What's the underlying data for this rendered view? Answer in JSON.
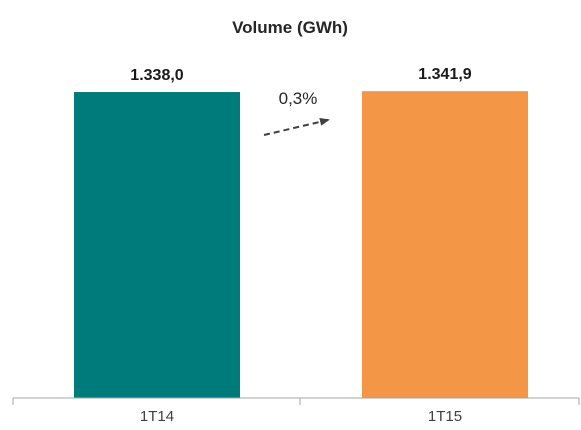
{
  "chart_data": {
    "type": "bar",
    "title": "Volume (GWh)",
    "categories": [
      "1T14",
      "1T15"
    ],
    "values": [
      1338.0,
      1341.9
    ],
    "value_labels": [
      "1.338,0",
      "1.341,9"
    ],
    "colors": [
      "#007b7b",
      "#f39646"
    ],
    "ylim": [
      0,
      1500
    ],
    "xlabel": "",
    "ylabel": "",
    "grid": false,
    "annotations": [
      {
        "text": "0,3%",
        "type": "growth-arrow"
      }
    ]
  }
}
